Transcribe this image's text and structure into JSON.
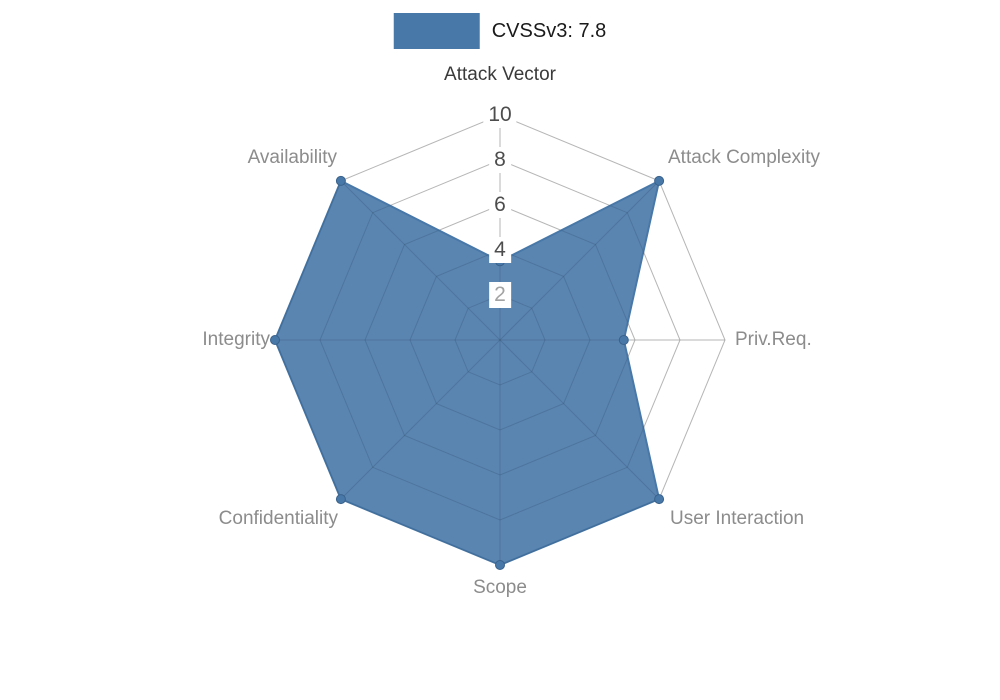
{
  "legend": {
    "label": "CVSSv3: 7.8",
    "swatch_color": "#4878a8"
  },
  "chart_data": {
    "type": "radar",
    "title": "CVSSv3: 7.8",
    "categories": [
      "Attack Vector",
      "Attack Complexity",
      "Priv.Req.",
      "User Interaction",
      "Scope",
      "Confidentiality",
      "Integrity",
      "Availability"
    ],
    "values": [
      3.5,
      10,
      5.5,
      10,
      10,
      10,
      10,
      10
    ],
    "min": 0,
    "max": 10,
    "ticks": [
      2,
      4,
      6,
      8,
      10
    ],
    "tick_labels": [
      {
        "value": "10",
        "color": "#4d4d4d"
      },
      {
        "value": "8",
        "color": "#4d4d4d"
      },
      {
        "value": "6",
        "color": "#4d4d4d"
      },
      {
        "value": "4",
        "color": "#4d4d4d"
      },
      {
        "value": "2",
        "color": "#a3a3a3"
      }
    ],
    "series_color": "#4878a8",
    "grid_color": "#c8c8c8",
    "axis_label_color": "#8c8c8c",
    "first_axis_label_color": "#3a3a3a",
    "legend_position": "top",
    "grid": true
  }
}
